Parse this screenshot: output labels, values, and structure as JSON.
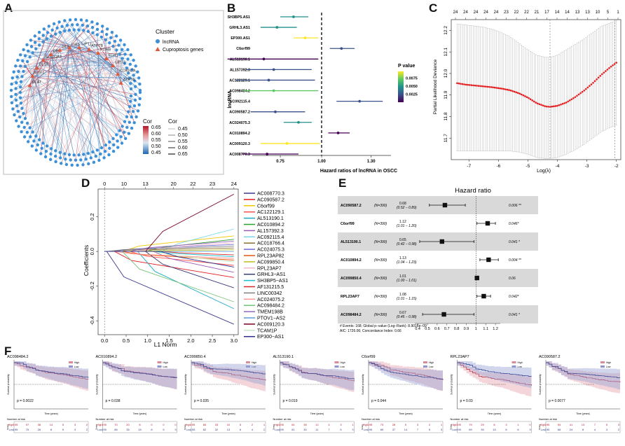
{
  "figure": {
    "panel_labels": [
      "A",
      "B",
      "C",
      "D",
      "E",
      "F"
    ]
  },
  "chart_data": [
    {
      "panel": "A",
      "type": "network",
      "legend_cluster_title": "Cluster",
      "legend_cluster_items": [
        {
          "label": "lncRNA",
          "color": "#3d8fd6",
          "shape": "circle"
        },
        {
          "label": "Cuproptosis genes",
          "color": "#e05a3f",
          "shape": "triangle"
        }
      ],
      "legend_cor_color_title": "Cor",
      "legend_cor_color_ticks": [
        "0.65",
        "0.60",
        "0.55",
        "0.50",
        "0.45"
      ],
      "legend_cor_width_title": "Cor",
      "legend_cor_width_items": [
        "0.45",
        "0.50",
        "0.55",
        "0.60",
        "0.65"
      ],
      "gene_labels": [
        "DLAT",
        "MTF1",
        "DLST",
        "SLC31A1",
        "DBT",
        "GLS",
        "LIAS",
        "LIPT1",
        "ATP7B",
        "PDHB",
        "FDX1",
        "LIPT2",
        "CDKN2A",
        "ATP7A"
      ],
      "n_lncrna_nodes": 220
    },
    {
      "panel": "B",
      "type": "forest",
      "title": "",
      "xlabel": "Hazard ratios of lncRNA in OSCC",
      "ylabel": "lncRNA",
      "xticks": [
        "0.75",
        "1.00",
        "1.30"
      ],
      "xlim": [
        0.58,
        1.42
      ],
      "ref_line": 1.0,
      "colorbar_title": "P value",
      "colorbar_ticks": [
        "0.0075",
        "0.0050",
        "0.0025"
      ],
      "colorbar_range": [
        0.0,
        0.0095
      ],
      "rows": [
        {
          "name": "SH3BP5.AS1",
          "hr": 0.83,
          "lo": 0.75,
          "hi": 0.92,
          "p": 0.0055
        },
        {
          "name": "GRHL3.AS1",
          "hr": 0.73,
          "lo": 0.63,
          "hi": 0.85,
          "p": 0.0048
        },
        {
          "name": "EP300.AS1",
          "hr": 0.9,
          "lo": 0.83,
          "hi": 0.98,
          "p": 0.009
        },
        {
          "name": "C6orf99",
          "hr": 1.12,
          "lo": 1.05,
          "hi": 1.2,
          "p": 0.0012
        },
        {
          "name": "AL513190.1",
          "hr": 0.65,
          "lo": 0.43,
          "hi": 0.98,
          "p": 0.001
        },
        {
          "name": "AL157392.3",
          "hr": 0.71,
          "lo": 0.54,
          "hi": 0.94,
          "p": 0.0015
        },
        {
          "name": "AC122129.1",
          "hr": 0.68,
          "lo": 0.48,
          "hi": 0.96,
          "p": 0.0012
        },
        {
          "name": "AC098484.2",
          "hr": 0.71,
          "lo": 0.52,
          "hi": 0.98,
          "p": 0.0068
        },
        {
          "name": "AC092115.4",
          "hr": 1.23,
          "lo": 1.09,
          "hi": 1.37,
          "p": 0.0022
        },
        {
          "name": "AC090587.2",
          "hr": 0.72,
          "lo": 0.57,
          "hi": 0.9,
          "p": 0.0018
        },
        {
          "name": "AC024075.3",
          "hr": 0.86,
          "lo": 0.77,
          "hi": 0.94,
          "p": 0.005
        },
        {
          "name": "AC010894.2",
          "hr": 1.1,
          "lo": 1.04,
          "hi": 1.17,
          "p": 0.001
        },
        {
          "name": "AC009120.3",
          "hr": 0.79,
          "lo": 0.63,
          "hi": 0.99,
          "p": 0.0088
        },
        {
          "name": "AC008770.3",
          "hr": 0.67,
          "lo": 0.52,
          "hi": 0.86,
          "p": 0.0008
        }
      ]
    },
    {
      "panel": "C",
      "type": "line",
      "title": "",
      "xlabel": "Log(λ)",
      "ylabel": "Partial Likelihood Deviance",
      "xticks": [
        "-7",
        "-6",
        "-5",
        "-4",
        "-3",
        "-2"
      ],
      "yticks": [
        "11.7",
        "11.8",
        "11.9",
        "12.0",
        "12.1",
        "12.2"
      ],
      "top_ticks": [
        "24",
        "24",
        "24",
        "24",
        "24",
        "23",
        "22",
        "22",
        "21",
        "17",
        "14",
        "14",
        "13",
        "13",
        "10",
        "5",
        "1"
      ],
      "xlim": [
        -7.6,
        -1.85
      ],
      "ylim": [
        11.6,
        12.25
      ],
      "lambda_min_line": -4.25,
      "lambda_1se_line": -2.05,
      "x": [
        -7.4,
        -7.1,
        -6.8,
        -6.5,
        -6.2,
        -5.9,
        -5.6,
        -5.3,
        -5.0,
        -4.7,
        -4.4,
        -4.25,
        -4.0,
        -3.7,
        -3.4,
        -3.1,
        -2.8,
        -2.5,
        -2.2,
        -2.0
      ],
      "y": [
        11.955,
        11.948,
        11.944,
        11.94,
        11.936,
        11.93,
        11.922,
        11.908,
        11.888,
        11.862,
        11.847,
        11.845,
        11.85,
        11.865,
        11.89,
        11.92,
        11.955,
        11.995,
        12.03,
        12.05
      ],
      "err_lo": [
        11.64,
        11.64,
        11.64,
        11.64,
        11.64,
        11.64,
        11.64,
        11.635,
        11.625,
        11.61,
        11.605,
        11.605,
        11.61,
        11.625,
        11.645,
        11.67,
        11.7,
        11.73,
        11.75,
        11.76
      ],
      "err_hi": [
        12.23,
        12.225,
        12.22,
        12.215,
        12.205,
        12.19,
        12.17,
        12.14,
        12.11,
        12.085,
        12.075,
        12.075,
        12.085,
        12.11,
        12.135,
        12.16,
        12.19,
        12.22,
        12.235,
        12.245
      ]
    },
    {
      "panel": "D",
      "type": "line",
      "title": "",
      "xlabel": "L1 Norm",
      "ylabel": "Coefficients",
      "xticks": [
        "0.0",
        "0.5",
        "1.0",
        "1.5",
        "2.0",
        "2.5",
        "3.0"
      ],
      "yticks": [
        "-0.4",
        "-0.2",
        "0.0",
        "0.2"
      ],
      "top_ticks": [
        "0",
        "10",
        "13",
        "20",
        "22",
        "23",
        "24"
      ],
      "xlim": [
        -0.15,
        3.1
      ],
      "ylim": [
        -0.48,
        0.36
      ],
      "series": [
        {
          "name": "AC008770.3",
          "color": "#3b3b8f",
          "end": -0.42
        },
        {
          "name": "AC090587.2",
          "color": "#e31a1c",
          "end": -0.15
        },
        {
          "name": "C6orf99",
          "color": "#f0c800",
          "end": 0.09
        },
        {
          "name": "AC122129.1",
          "color": "#ff4d4d",
          "end": -0.08
        },
        {
          "name": "AL513190.1",
          "color": "#1fa8c9",
          "end": -0.33
        },
        {
          "name": "AC010894.2",
          "color": "#2ca02c",
          "end": 0.07
        },
        {
          "name": "AL157392.3",
          "color": "#9b59b6",
          "end": -0.12
        },
        {
          "name": "AC092115.4",
          "color": "#76d7ea",
          "end": 0.13
        },
        {
          "name": "AC018766.4",
          "color": "#8c6d31",
          "end": 0.02
        },
        {
          "name": "AC024075.3",
          "color": "#6b6ecf",
          "end": 0.04
        },
        {
          "name": "RPL23AP82",
          "color": "#e6550d",
          "end": -0.05
        },
        {
          "name": "AC099850.4",
          "color": "#bcbd22",
          "end": 0.01
        },
        {
          "name": "RPL23AP7",
          "color": "#f7b6d2",
          "end": 0.05
        },
        {
          "name": "GRHL3−AS1",
          "color": "#393b79",
          "end": -0.21
        },
        {
          "name": "SH3BP5−AS1",
          "color": "#17becf",
          "end": -0.03
        },
        {
          "name": "AF131215.5",
          "color": "#d62728",
          "end": -0.02
        },
        {
          "name": "LINC00342",
          "color": "#7f7f7f",
          "end": 0.03
        },
        {
          "name": "AC024075.2",
          "color": "#ff9896",
          "end": -0.04
        },
        {
          "name": "AC098484.2",
          "color": "#74c476",
          "end": -0.29
        },
        {
          "name": "TMEM198B",
          "color": "#9467bd",
          "end": 0.06
        },
        {
          "name": "PTOV1−AS2",
          "color": "#5b9bd5",
          "end": 0.0
        },
        {
          "name": "AC009120.3",
          "color": "#7b0020",
          "end": 0.33
        },
        {
          "name": "TCAM1P",
          "color": "#c7e9c0",
          "end": -0.06
        },
        {
          "name": "EP300−AS1",
          "color": "#2d2d8a",
          "end": -0.09
        }
      ]
    },
    {
      "panel": "E",
      "type": "forest",
      "title": "Hazard ratio",
      "xticks": [
        "0.4",
        "0.5",
        "0.6",
        "0.7",
        "0.8",
        "0.9",
        "1",
        "1.1",
        "1.2"
      ],
      "xlim": [
        0.37,
        1.25
      ],
      "ref_line": 1.0,
      "rows": [
        {
          "name": "AC090587.2",
          "n": "(N=390)",
          "hr_text": "0.68",
          "ci_text": "(0.52 − 0.89)",
          "hr": 0.68,
          "lo": 0.52,
          "hi": 0.89,
          "p": "0.006 **",
          "shaded": true
        },
        {
          "name": "C6orf99",
          "n": "(N=390)",
          "hr_text": "1.12",
          "ci_text": "(1.01 − 1.20)",
          "hr": 1.12,
          "lo": 1.01,
          "hi": 1.2,
          "p": "0.046*",
          "shaded": false
        },
        {
          "name": "AL513190.1",
          "n": "(N=390)",
          "hr_text": "0.65",
          "ci_text": "(0.42 − 0.98)",
          "hr": 0.65,
          "lo": 0.42,
          "hi": 0.98,
          "p": "0.041 *",
          "shaded": true
        },
        {
          "name": "AC010894.2",
          "n": "(N=390)",
          "hr_text": "1.13",
          "ci_text": "(1.04 − 1.23)",
          "hr": 1.13,
          "lo": 1.04,
          "hi": 1.23,
          "p": "0.004 **",
          "shaded": false
        },
        {
          "name": "AC099850.4",
          "n": "(N=390)",
          "hr_text": "1.01",
          "ci_text": "(1.00 − 1.01)",
          "hr": 1.01,
          "lo": 1.0,
          "hi": 1.01,
          "p": "0.06",
          "shaded": true
        },
        {
          "name": "RPL23AP7",
          "n": "(N=390)",
          "hr_text": "1.08",
          "ci_text": "(1.01 − 1.15)",
          "hr": 1.08,
          "lo": 1.01,
          "hi": 1.15,
          "p": "0.042*",
          "shaded": false
        },
        {
          "name": "AC098484.2",
          "n": "(N=390)",
          "hr_text": "0.67",
          "ci_text": "(0.45 − 0.98)",
          "hr": 0.67,
          "lo": 0.45,
          "hi": 0.98,
          "p": "0.041 *",
          "shaded": true
        }
      ],
      "footer_line1": "# Events: 168; Global p−value (Log−Rank): 8.9016e−09",
      "footer_line2": "AIC: 1726.06; Concordance Index: 0.66"
    },
    {
      "panel": "F",
      "type": "km",
      "xlabel": "Time (years)",
      "ylabel": "Survival probability",
      "risk_title": "Number at risk",
      "strata_label": "Strata",
      "legend_high": "High",
      "legend_low": "Low",
      "plots": [
        {
          "gene": "AC098484.2",
          "p": "p = 0.0022",
          "high_risk": [
            "195",
            "97",
            "36",
            "14",
            "5",
            "3",
            "2"
          ],
          "low_risk": [
            "195",
            "75",
            "26",
            "8",
            "5",
            "3",
            "2"
          ]
        },
        {
          "gene": "AC010894.2",
          "p": "p = 0.038",
          "high_risk": [
            "195",
            "70",
            "20",
            "8",
            "0",
            "0",
            "0"
          ],
          "low_risk": [
            "195",
            "86",
            "35",
            "15",
            "8",
            "5",
            "3"
          ]
        },
        {
          "gene": "AC099850.4",
          "p": "p = 0.035",
          "high_risk": [
            "195",
            "80",
            "33",
            "10",
            "5",
            "2",
            "1"
          ],
          "low_risk": [
            "195",
            "82",
            "32",
            "13",
            "6",
            "4",
            "2"
          ]
        },
        {
          "gene": "AL513190.1",
          "p": "p = 0.019",
          "high_risk": [
            "195",
            "81",
            "35",
            "12",
            "4",
            "3",
            "1"
          ],
          "low_risk": [
            "195",
            "81",
            "30",
            "11",
            "7",
            "5",
            "3"
          ]
        },
        {
          "gene": "C6orf99",
          "p": "p = 0.044",
          "high_risk": [
            "195",
            "73",
            "28",
            "9",
            "3",
            "2",
            "1"
          ],
          "low_risk": [
            "195",
            "89",
            "37",
            "14",
            "7",
            "5",
            "3"
          ]
        },
        {
          "gene": "RPL23AP7",
          "p": "p = 0.03",
          "high_risk": [
            "195",
            "79",
            "29",
            "8",
            "3",
            "1",
            "0"
          ],
          "low_risk": [
            "195",
            "89",
            "35",
            "15",
            "8",
            "6",
            "3"
          ]
        },
        {
          "gene": "AC090587.2",
          "p": "p = 0.0077",
          "high_risk": [
            "195",
            "94",
            "41",
            "13",
            "7",
            "5",
            "3"
          ],
          "low_risk": [
            "195",
            "68",
            "24",
            "8",
            "4",
            "3",
            "2"
          ]
        }
      ]
    }
  ]
}
